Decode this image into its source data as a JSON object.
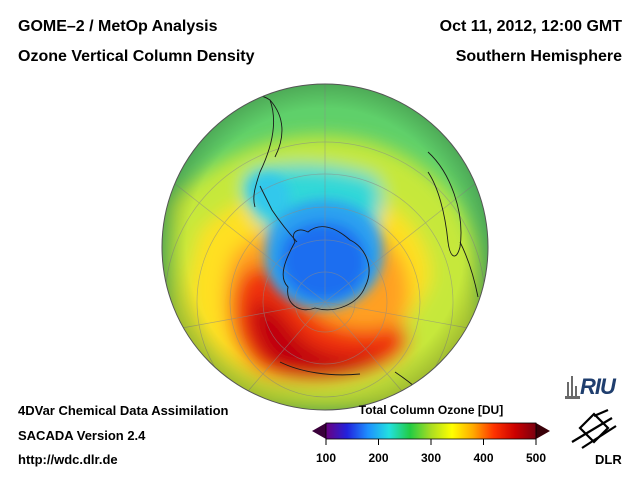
{
  "header": {
    "instrument": "GOME–2 / MetOp Analysis",
    "product": "Ozone Vertical Column Density",
    "datetime": "Oct 11, 2012, 12:00 GMT",
    "region": "Southern Hemisphere"
  },
  "footer": {
    "method": "4DVar Chemical Data Assimilation",
    "version": "SACADA Version 2.4",
    "url": "http://wdc.dlr.de"
  },
  "map": {
    "projection": "orthographic, south polar view",
    "features": [
      "antarctic ozone hole",
      "coastlines",
      "graticule"
    ]
  },
  "legend": {
    "title": "Total Column Ozone [DU]",
    "ticks": [
      {
        "value": 100,
        "label": "100"
      },
      {
        "value": 200,
        "label": "200"
      },
      {
        "value": 300,
        "label": "300"
      },
      {
        "value": 400,
        "label": "400"
      },
      {
        "value": 500,
        "label": "500"
      }
    ],
    "range": [
      100,
      500
    ],
    "colors": [
      "#6a0080",
      "#2222dd",
      "#1e90ff",
      "#22e0e0",
      "#22cc44",
      "#aadd22",
      "#ffff00",
      "#ffaa00",
      "#ff3300",
      "#cc0000",
      "#7a0010"
    ]
  },
  "logos": {
    "riu": "RIU",
    "dlr": "DLR"
  }
}
